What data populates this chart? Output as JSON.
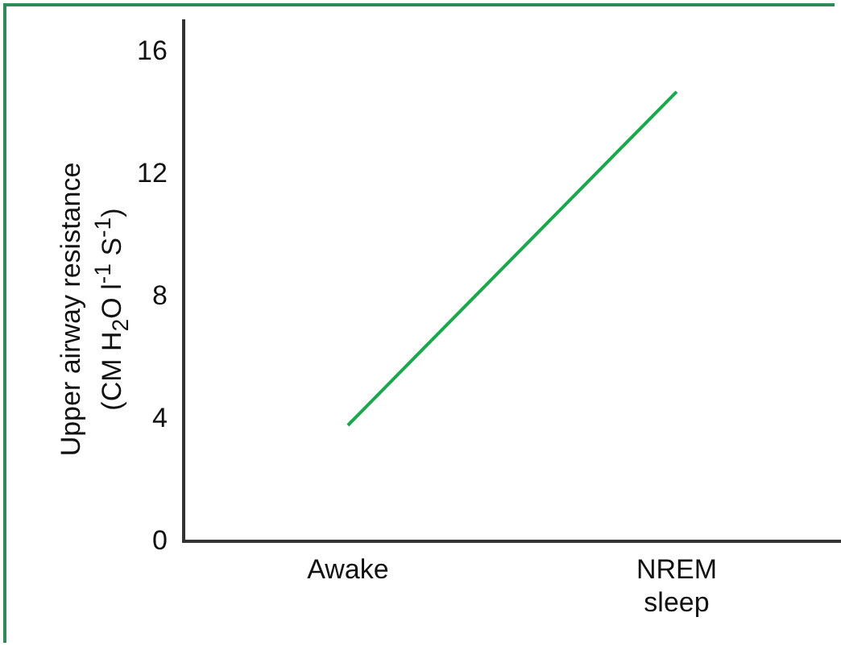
{
  "chart_data": {
    "type": "line",
    "ylabel": "Upper airway resistance\n(CM H$_{2}$O l$^{-1}$ S$^{-1}$)",
    "categories": [
      "Awake",
      "NREM sleep"
    ],
    "series": [
      {
        "color": "#1aa84c",
        "values": [
          3.8,
          14.7
        ]
      }
    ],
    "ylim": [
      0,
      17
    ],
    "yticks": [
      0,
      4,
      8,
      12,
      16
    ],
    "grid": false,
    "legend": false,
    "marker": "none",
    "line_style": "solid"
  }
}
